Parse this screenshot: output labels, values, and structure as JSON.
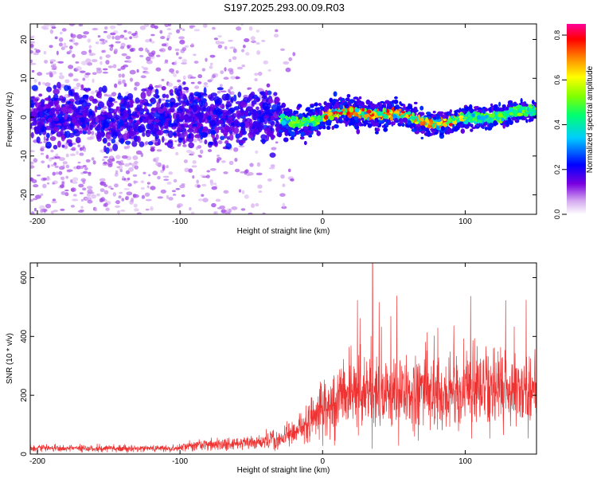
{
  "title": "S197.2025.293.00.09.R03",
  "colors": {
    "snr_line": "#ee3333",
    "axis": "#000000",
    "background": "#ffffff"
  },
  "chart_data": [
    {
      "type": "heatmap",
      "name": "spectrogram",
      "xlabel": "Height of straight line (km)",
      "ylabel": "Frequency (Hz)",
      "xlim": [
        -205,
        150
      ],
      "ylim": [
        -25,
        24
      ],
      "x_ticks": [
        "-200",
        "-100",
        "0",
        "100"
      ],
      "x_tick_values": [
        -200,
        -100,
        0,
        100
      ],
      "y_ticks": [
        "20",
        "10",
        "0",
        "-10",
        "-20"
      ],
      "y_tick_values": [
        20,
        10,
        0,
        -10,
        -20
      ],
      "signal_band": {
        "center_hz": 0,
        "weak_region_km": [
          -205,
          -30
        ],
        "strong_region_km": [
          -30,
          150
        ],
        "scatter_extent_hz": [
          -25,
          24
        ]
      },
      "colorbar": {
        "label": "Normalized spectral amplitude",
        "range": [
          0.0,
          0.85
        ],
        "ticks": [
          "0.0",
          "0.2",
          "0.4",
          "0.6",
          "0.8"
        ],
        "tick_values": [
          0.0,
          0.2,
          0.4,
          0.6,
          0.8
        ],
        "colormap": "rainbow (white → violet → blue → cyan → green → yellow → orange → red → magenta)"
      }
    },
    {
      "type": "line",
      "name": "snr",
      "xlabel": "Height of straight line (km)",
      "ylabel": "SNR (10 * v/v)",
      "xlim": [
        -205,
        150
      ],
      "ylim": [
        0,
        650
      ],
      "x_ticks": [
        "-200",
        "-100",
        "0",
        "100"
      ],
      "x_tick_values": [
        -200,
        -100,
        0,
        100
      ],
      "y_ticks": [
        "0",
        "200",
        "400",
        "600"
      ],
      "y_tick_values": [
        0,
        200,
        400,
        600
      ],
      "series": [
        {
          "name": "SNR",
          "description": "noisy trace",
          "approx_mean_by_height_km": [
            [
              -205,
              20
            ],
            [
              -100,
              20
            ],
            [
              -95,
              30
            ],
            [
              -60,
              35
            ],
            [
              -40,
              45
            ],
            [
              -20,
              70
            ],
            [
              -10,
              110
            ],
            [
              0,
              160
            ],
            [
              20,
              200
            ],
            [
              50,
              210
            ],
            [
              100,
              215
            ],
            [
              150,
              220
            ]
          ],
          "peak": [
            35,
            650
          ]
        }
      ]
    }
  ]
}
